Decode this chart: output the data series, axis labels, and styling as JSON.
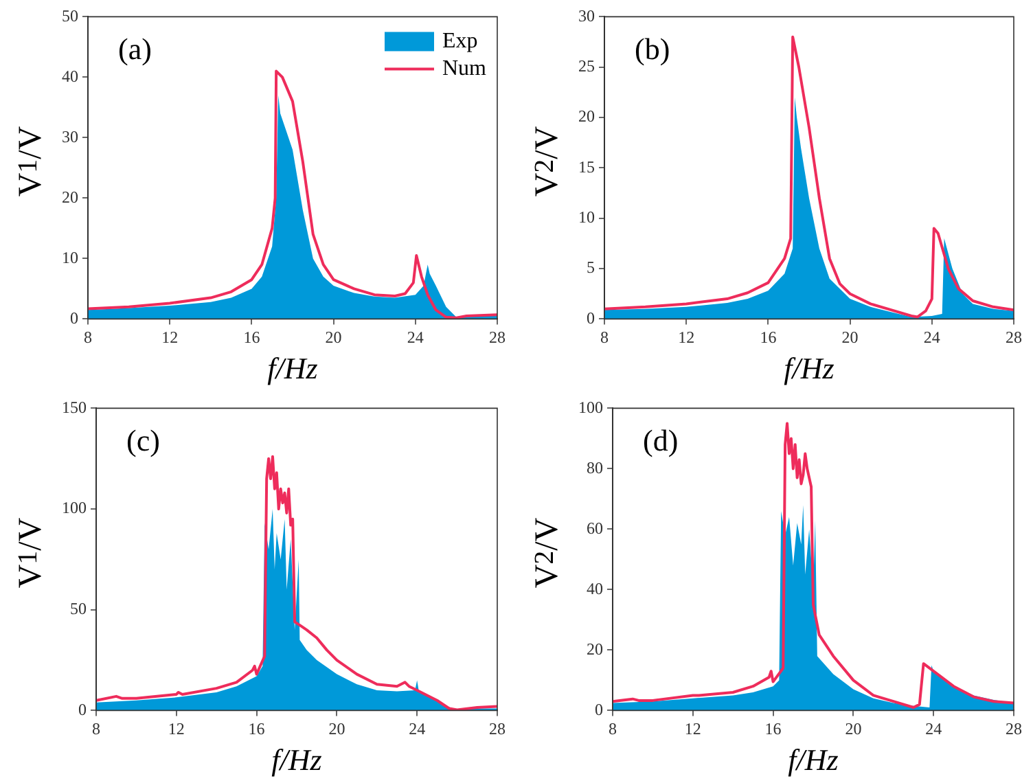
{
  "chart_data": [
    {
      "type": "line",
      "xlabel": "f/Hz",
      "ylabel": "V$_{1}$/V",
      "annotations": [
        "(a)"
      ],
      "xlim": [
        8,
        28
      ],
      "xticks": [
        8,
        12,
        16,
        20,
        24,
        28
      ],
      "ylim": [
        0,
        50
      ],
      "yticks": [
        0,
        10,
        20,
        30,
        40,
        50
      ],
      "grid": false,
      "legend": "top right",
      "series": [
        {
          "name": "Exp",
          "type": "area",
          "color": "#0099d9",
          "x": [
            8,
            10,
            12,
            14,
            15,
            16,
            16.5,
            17,
            17.2,
            17.3,
            17.4,
            17.6,
            18,
            18.5,
            19,
            19.5,
            20,
            21,
            22,
            23,
            24,
            24.4,
            24.6,
            24.7,
            25,
            25.5,
            26,
            27,
            28
          ],
          "values": [
            1.5,
            1.8,
            2.2,
            2.8,
            3.5,
            5,
            7,
            12,
            20,
            37,
            34,
            32,
            28,
            18,
            10,
            7,
            5.5,
            4.3,
            3.7,
            3.5,
            4,
            5.5,
            9,
            7.5,
            5.5,
            2,
            0.3,
            0.5,
            0.6
          ]
        },
        {
          "name": "Num",
          "type": "line",
          "color": "#ee2c5b",
          "x": [
            8,
            10,
            12,
            14,
            15,
            16,
            16.5,
            17,
            17.15,
            17.2,
            17.5,
            18,
            18.5,
            19,
            19.5,
            20,
            21,
            22,
            23,
            23.5,
            23.9,
            24.05,
            24.3,
            24.6,
            25,
            25.5,
            26,
            26.5,
            28
          ],
          "values": [
            1.7,
            2,
            2.6,
            3.5,
            4.5,
            6.5,
            9,
            15,
            20,
            41,
            40,
            36,
            26,
            14,
            9,
            6.5,
            5,
            4,
            3.8,
            4.2,
            6,
            10.5,
            7,
            4,
            1.5,
            0.3,
            0.2,
            0.5,
            0.7
          ]
        }
      ]
    },
    {
      "type": "line",
      "xlabel": "f/Hz",
      "ylabel": "V$_{2}$/V",
      "annotations": [
        "(b)"
      ],
      "xlim": [
        8,
        28
      ],
      "xticks": [
        8,
        12,
        16,
        20,
        24,
        28
      ],
      "ylim": [
        0,
        30
      ],
      "yticks": [
        0,
        5,
        10,
        15,
        20,
        25,
        30
      ],
      "grid": false,
      "series": [
        {
          "type": "area",
          "color": "#0099d9",
          "x": [
            8,
            10,
            12,
            14,
            15,
            16,
            16.8,
            17.2,
            17.3,
            17.4,
            17.6,
            18,
            18.5,
            19,
            20,
            21,
            22,
            23,
            24,
            24.5,
            24.6,
            24.8,
            25,
            25.5,
            26,
            27,
            28
          ],
          "values": [
            0.9,
            1,
            1.2,
            1.6,
            2,
            2.8,
            4.5,
            7,
            22,
            20,
            17,
            12,
            7,
            4,
            2,
            1.2,
            0.7,
            0.2,
            0.3,
            0.5,
            8,
            6.5,
            5,
            2.5,
            1.5,
            1,
            0.8
          ]
        },
        {
          "type": "line",
          "color": "#ee2c5b",
          "x": [
            8,
            10,
            12,
            14,
            15,
            16,
            16.8,
            17.1,
            17.2,
            17.5,
            18,
            18.5,
            19,
            19.5,
            20,
            21,
            22,
            23,
            23.3,
            23.7,
            24,
            24.1,
            24.3,
            24.8,
            25.3,
            26,
            27,
            28
          ],
          "values": [
            1,
            1.2,
            1.5,
            2,
            2.6,
            3.6,
            6,
            8,
            28,
            25,
            19,
            12,
            6,
            3.5,
            2.5,
            1.5,
            0.9,
            0.3,
            0.2,
            0.8,
            2,
            9,
            8.5,
            5,
            3,
            1.8,
            1.2,
            0.9
          ]
        }
      ]
    },
    {
      "type": "line",
      "xlabel": "f/Hz",
      "ylabel": "V$_{1}$/V",
      "annotations": [
        "(c)"
      ],
      "xlim": [
        8,
        28
      ],
      "xticks": [
        8,
        12,
        16,
        20,
        24,
        28
      ],
      "ylim": [
        0,
        150
      ],
      "yticks": [
        0,
        50,
        100,
        150
      ],
      "grid": false,
      "series": [
        {
          "type": "area",
          "color": "#0099d9",
          "x": [
            8,
            10,
            12,
            14,
            15,
            16,
            16.3,
            16.4,
            16.6,
            16.8,
            16.9,
            17,
            17.2,
            17.4,
            17.5,
            17.7,
            17.9,
            18.1,
            18.15,
            18.5,
            19,
            20,
            21,
            22,
            23,
            23.9,
            24,
            24.1,
            25,
            25.5,
            26,
            27,
            28
          ],
          "values": [
            4,
            5,
            6.5,
            9,
            12,
            17,
            22,
            93,
            80,
            100,
            70,
            88,
            75,
            95,
            60,
            85,
            40,
            75,
            35,
            30,
            25,
            18,
            13,
            10,
            9.5,
            10,
            15,
            9,
            5,
            2,
            0.5,
            1,
            1
          ]
        },
        {
          "type": "line",
          "color": "#ee2c5b",
          "x": [
            8,
            9,
            9.3,
            10,
            12,
            12.1,
            12.3,
            14,
            15,
            15.8,
            15.9,
            16,
            16.4,
            16.5,
            16.6,
            16.7,
            16.8,
            16.9,
            17,
            17.1,
            17.2,
            17.3,
            17.4,
            17.5,
            17.6,
            17.7,
            17.8,
            17.9,
            18.2,
            18.5,
            19,
            19.5,
            20,
            21,
            22,
            23,
            23.4,
            23.6,
            24,
            25,
            25.6,
            26,
            27,
            28
          ],
          "values": [
            5,
            7,
            6,
            6,
            8,
            9,
            8,
            11,
            14,
            20,
            22,
            18,
            27,
            115,
            125,
            115,
            126,
            110,
            118,
            100,
            110,
            103,
            108,
            98,
            110,
            92,
            95,
            44,
            42,
            40,
            36,
            30,
            25,
            18,
            13,
            12,
            14,
            12,
            10,
            5,
            1,
            0.3,
            1.5,
            2
          ]
        }
      ]
    },
    {
      "type": "line",
      "xlabel": "f/Hz",
      "ylabel": "V$_{2}$/V",
      "annotations": [
        "(d)"
      ],
      "xlim": [
        8,
        28
      ],
      "xticks": [
        8,
        12,
        16,
        20,
        24,
        28
      ],
      "ylim": [
        0,
        100
      ],
      "yticks": [
        0,
        20,
        40,
        60,
        80,
        100
      ],
      "grid": false,
      "series": [
        {
          "type": "area",
          "color": "#0099d9",
          "x": [
            8,
            10,
            12,
            14,
            15,
            16,
            16.3,
            16.4,
            16.6,
            16.8,
            17,
            17.2,
            17.4,
            17.5,
            17.6,
            17.8,
            18,
            18.1,
            18.2,
            19,
            20,
            21,
            22,
            23,
            23.8,
            23.9,
            24,
            25,
            26,
            27,
            28
          ],
          "values": [
            2.5,
            3,
            4,
            5,
            6,
            8,
            10,
            66,
            58,
            64,
            48,
            62,
            55,
            68,
            45,
            60,
            40,
            63,
            18,
            12,
            7,
            4,
            2.5,
            1.5,
            1,
            15,
            13,
            8,
            5,
            3.5,
            2.5
          ]
        },
        {
          "type": "line",
          "color": "#ee2c5b",
          "x": [
            8,
            9,
            9.3,
            10,
            12,
            12.3,
            14,
            15,
            15.8,
            15.9,
            16,
            16.5,
            16.6,
            16.7,
            16.8,
            16.9,
            17,
            17.1,
            17.2,
            17.3,
            17.4,
            17.5,
            17.6,
            17.7,
            17.9,
            18,
            18.3,
            19,
            20,
            21,
            22,
            23,
            23.3,
            23.5,
            24,
            25,
            26,
            27,
            28
          ],
          "values": [
            3,
            3.8,
            3.3,
            3.3,
            5,
            5,
            6,
            8,
            11,
            13,
            9.5,
            14,
            88,
            95,
            85,
            90,
            80,
            88,
            77,
            83,
            75,
            78,
            85,
            80,
            74,
            35,
            25,
            18,
            10,
            5,
            3,
            1,
            2,
            15.5,
            13,
            8,
            4.5,
            3,
            2.5
          ]
        }
      ]
    }
  ]
}
